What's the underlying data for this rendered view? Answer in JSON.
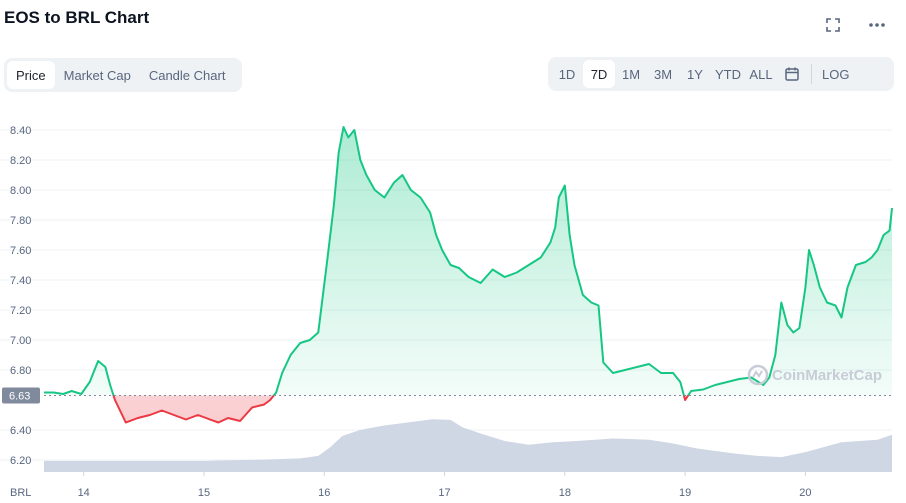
{
  "header": {
    "title": "EOS to BRL Chart",
    "fullscreen_icon": "fullscreen-icon",
    "more_icon": "more-horizontal-icon"
  },
  "tabs": [
    {
      "label": "Price",
      "active": true
    },
    {
      "label": "Market Cap",
      "active": false
    },
    {
      "label": "Candle Chart",
      "active": false
    }
  ],
  "ranges": [
    {
      "label": "1D",
      "active": false
    },
    {
      "label": "7D",
      "active": true
    },
    {
      "label": "1M",
      "active": false
    },
    {
      "label": "3M",
      "active": false
    },
    {
      "label": "1Y",
      "active": false
    },
    {
      "label": "YTD",
      "active": false
    },
    {
      "label": "ALL",
      "active": false
    }
  ],
  "calendar_icon": "calendar-icon",
  "log_label": "LOG",
  "currency_label": "BRL",
  "watermark": "CoinMarketCap",
  "colors": {
    "up": "#16c784",
    "down": "#ea3943",
    "volume": "#cfd6e4",
    "current_bg": "#808a9d"
  },
  "chart_data": {
    "type": "line",
    "title": "",
    "xlabel": "",
    "ylabel": "",
    "ylim": [
      6.12,
      8.5
    ],
    "xlim": [
      13.67,
      20.72
    ],
    "y_ticks": [
      "8.40",
      "8.20",
      "8.00",
      "7.80",
      "7.60",
      "7.40",
      "7.20",
      "7.00",
      "6.80",
      "6.63",
      "6.40",
      "6.20"
    ],
    "y_tick_values": [
      8.4,
      8.2,
      8.0,
      7.8,
      7.6,
      7.4,
      7.2,
      7.0,
      6.8,
      6.4,
      6.2
    ],
    "x_ticks": [
      "14",
      "15",
      "16",
      "17",
      "18",
      "19",
      "20"
    ],
    "x_tick_values": [
      14,
      15,
      16,
      17,
      18,
      19,
      20
    ],
    "current_price": "6.63",
    "current_price_value": 6.63,
    "grid": true,
    "series": [
      {
        "x": [
          13.67,
          13.75,
          13.83,
          13.9,
          13.98,
          14.05,
          14.12,
          14.18,
          14.22,
          14.26,
          14.35,
          14.45,
          14.55,
          14.65,
          14.75,
          14.85,
          14.95,
          15.05,
          15.12,
          15.2,
          15.3,
          15.4,
          15.5,
          15.55,
          15.6,
          15.65,
          15.72,
          15.8,
          15.88,
          15.95,
          16.02,
          16.08,
          16.12,
          16.16,
          16.2,
          16.25,
          16.3,
          16.35,
          16.42,
          16.5,
          16.58,
          16.65,
          16.72,
          16.8,
          16.88,
          16.93,
          16.98,
          17.05,
          17.12,
          17.2,
          17.3,
          17.4,
          17.5,
          17.6,
          17.7,
          17.8,
          17.88,
          17.92,
          17.95,
          18.0,
          18.04,
          18.08,
          18.15,
          18.22,
          18.28,
          18.32,
          18.4,
          18.5,
          18.6,
          18.7,
          18.8,
          18.9,
          18.96,
          19.0,
          19.05,
          19.15,
          19.25,
          19.35,
          19.45,
          19.55,
          19.65,
          19.7,
          19.75,
          19.8,
          19.85,
          19.9,
          19.95,
          20.0,
          20.03,
          20.07,
          20.12,
          20.18,
          20.25,
          20.3,
          20.35,
          20.42,
          20.5,
          20.55,
          20.6,
          20.65,
          20.7,
          20.72
        ],
        "y": [
          6.65,
          6.65,
          6.64,
          6.66,
          6.64,
          6.72,
          6.86,
          6.82,
          6.7,
          6.6,
          6.45,
          6.48,
          6.5,
          6.53,
          6.5,
          6.47,
          6.5,
          6.47,
          6.45,
          6.48,
          6.46,
          6.55,
          6.57,
          6.6,
          6.65,
          6.78,
          6.9,
          6.98,
          7.0,
          7.05,
          7.5,
          7.9,
          8.25,
          8.42,
          8.35,
          8.4,
          8.2,
          8.1,
          8.0,
          7.95,
          8.05,
          8.1,
          8.0,
          7.95,
          7.85,
          7.7,
          7.6,
          7.5,
          7.48,
          7.42,
          7.38,
          7.47,
          7.42,
          7.45,
          7.5,
          7.55,
          7.65,
          7.75,
          7.95,
          8.03,
          7.7,
          7.5,
          7.3,
          7.25,
          7.23,
          6.85,
          6.78,
          6.8,
          6.82,
          6.84,
          6.78,
          6.78,
          6.72,
          6.6,
          6.66,
          6.67,
          6.7,
          6.72,
          6.74,
          6.75,
          6.7,
          6.75,
          6.9,
          7.25,
          7.1,
          7.05,
          7.08,
          7.35,
          7.6,
          7.5,
          7.35,
          7.25,
          7.23,
          7.15,
          7.35,
          7.5,
          7.52,
          7.55,
          7.6,
          7.7,
          7.73,
          7.88
        ]
      }
    ],
    "volume": {
      "x": [
        13.67,
        14.0,
        14.5,
        15.0,
        15.5,
        15.8,
        15.95,
        16.05,
        16.15,
        16.3,
        16.5,
        16.7,
        16.9,
        17.05,
        17.15,
        17.3,
        17.5,
        17.7,
        17.9,
        18.1,
        18.4,
        18.7,
        18.9,
        19.1,
        19.4,
        19.6,
        19.8,
        20.0,
        20.3,
        20.6,
        20.72
      ],
      "values": [
        0.18,
        0.18,
        0.18,
        0.18,
        0.2,
        0.22,
        0.26,
        0.4,
        0.58,
        0.68,
        0.75,
        0.8,
        0.85,
        0.84,
        0.72,
        0.62,
        0.5,
        0.44,
        0.48,
        0.5,
        0.54,
        0.52,
        0.46,
        0.38,
        0.3,
        0.26,
        0.24,
        0.32,
        0.48,
        0.52,
        0.6
      ]
    }
  }
}
